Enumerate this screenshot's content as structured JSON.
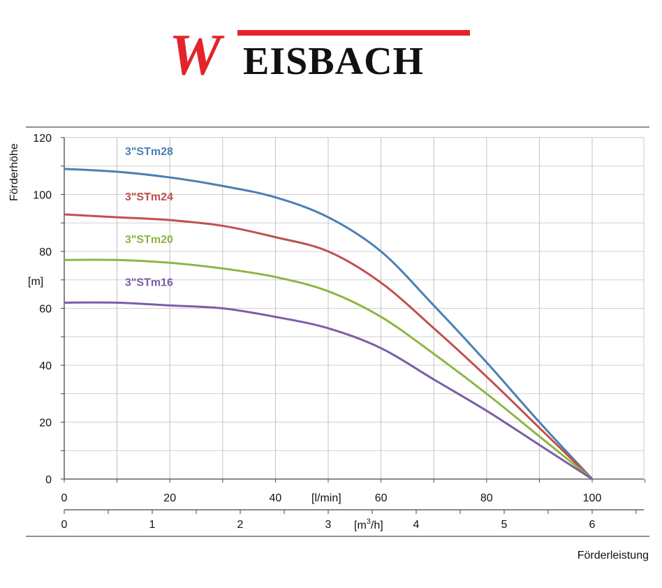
{
  "brand": {
    "first_letter": "W",
    "rest": "EISBACH",
    "red": "#e3242b",
    "dark": "#111111"
  },
  "chart_data": {
    "type": "line",
    "title": "",
    "ylabel": "Förderhöhe",
    "yunit": "[m]",
    "xlabel": "Förderleistung",
    "x_unit_primary": "[l/min]",
    "x_unit_secondary_pre": "[m",
    "x_unit_secondary_sup": "3",
    "x_unit_secondary_post": "/h]",
    "xlim": [
      0,
      110
    ],
    "ylim": [
      0,
      120
    ],
    "x_ticks": [
      0,
      20,
      40,
      60,
      80,
      100
    ],
    "y_ticks": [
      0,
      20,
      40,
      60,
      80,
      100,
      120
    ],
    "x_secondary_ticks": [
      0,
      1,
      2,
      3,
      4,
      5,
      6
    ],
    "x_secondary_max": 6,
    "x_secondary_max_lmin": 100,
    "grid": true,
    "series": [
      {
        "name": "3\"STm28",
        "color": "#4a7fb5",
        "x": [
          0,
          10,
          20,
          30,
          40,
          50,
          60,
          70,
          80,
          90,
          100
        ],
        "y": [
          109,
          108,
          106,
          103,
          99,
          92,
          80,
          61,
          41,
          20,
          0
        ]
      },
      {
        "name": "3\"STm24",
        "color": "#c0504d",
        "x": [
          0,
          10,
          20,
          30,
          40,
          50,
          60,
          70,
          80,
          90,
          100
        ],
        "y": [
          93,
          92,
          91,
          89,
          85,
          80,
          69,
          53,
          36,
          18,
          0
        ]
      },
      {
        "name": "3\"STm20",
        "color": "#8db542",
        "x": [
          0,
          10,
          20,
          30,
          40,
          50,
          60,
          70,
          80,
          90,
          100
        ],
        "y": [
          77,
          77,
          76,
          74,
          71,
          66,
          57,
          44,
          30,
          15,
          0
        ]
      },
      {
        "name": "3\"STm16",
        "color": "#7b5ea7",
        "x": [
          0,
          10,
          20,
          30,
          40,
          50,
          60,
          70,
          80,
          90,
          100
        ],
        "y": [
          62,
          62,
          61,
          60,
          57,
          53,
          46,
          35,
          24,
          12,
          0
        ]
      }
    ]
  }
}
